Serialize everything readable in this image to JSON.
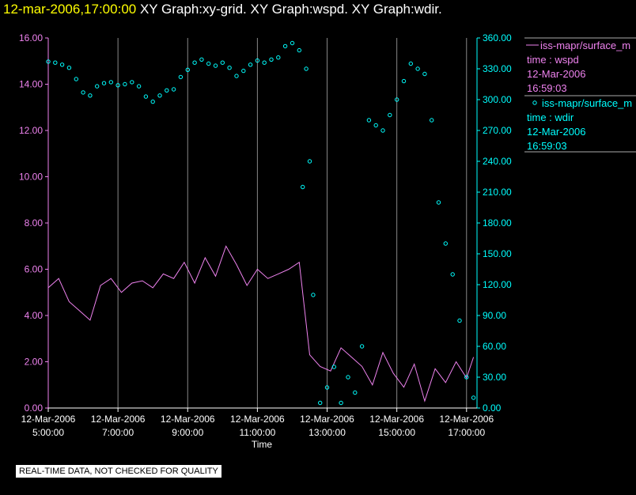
{
  "header": {
    "timestamp": "12-mar-2006,17:00:00",
    "rest": "  XY Graph:xy-grid.  XY Graph:wspd.  XY Graph:wdir."
  },
  "notice": "REAL-TIME DATA, NOT CHECKED FOR QUALITY",
  "colors": {
    "wspd": "#ee82ee",
    "wdir": "#00ffff",
    "grid": "#ffffff",
    "bg": "#000000",
    "title_ts": "#ffff00"
  },
  "chart_data": {
    "type": "line",
    "title": "12-mar-2006,17:00:00  XY Graph:xy-grid.  XY Graph:wspd.  XY Graph:wdir.",
    "xlabel": "Time",
    "x_range_hours": [
      5.0,
      17.3
    ],
    "x_ticks": [
      {
        "hour": 5,
        "date": "12-Mar-2006",
        "time": "5:00:00"
      },
      {
        "hour": 7,
        "date": "12-Mar-2006",
        "time": "7:00:00"
      },
      {
        "hour": 9,
        "date": "12-Mar-2006",
        "time": "9:00:00"
      },
      {
        "hour": 11,
        "date": "12-Mar-2006",
        "time": "11:00:00"
      },
      {
        "hour": 13,
        "date": "12-Mar-2006",
        "time": "13:00:00"
      },
      {
        "hour": 15,
        "date": "12-Mar-2006",
        "time": "15:00:00"
      },
      {
        "hour": 17,
        "date": "12-Mar-2006",
        "time": "17:00:00"
      }
    ],
    "left_axis": {
      "ylim": [
        0,
        16
      ],
      "ticks": [
        "0.00",
        "2.00",
        "4.00",
        "6.00",
        "8.00",
        "10.00",
        "12.00",
        "14.00",
        "16.00"
      ]
    },
    "right_axis": {
      "ylim": [
        0,
        360
      ],
      "ticks": [
        "0.00",
        "30.00",
        "60.00",
        "90.00",
        "120.00",
        "150.00",
        "180.00",
        "210.00",
        "240.00",
        "270.00",
        "300.00",
        "330.00",
        "360.00"
      ]
    },
    "series": [
      {
        "name": "iss-mapr/surface_m",
        "variable": "time : wspd",
        "date": "12-Mar-2006",
        "time": "16:59:03",
        "axis": "left",
        "style": "line",
        "hours": [
          5.0,
          5.3,
          5.6,
          5.9,
          6.2,
          6.5,
          6.8,
          7.1,
          7.4,
          7.7,
          8.0,
          8.3,
          8.6,
          8.9,
          9.2,
          9.5,
          9.8,
          10.1,
          10.4,
          10.7,
          11.0,
          11.3,
          11.6,
          11.9,
          12.2,
          12.5,
          12.8,
          13.1,
          13.4,
          13.7,
          14.0,
          14.3,
          14.6,
          14.9,
          15.2,
          15.5,
          15.8,
          16.1,
          16.4,
          16.7,
          17.0,
          17.2
        ],
        "values": [
          5.2,
          5.6,
          4.6,
          4.2,
          3.8,
          5.3,
          5.6,
          5.0,
          5.4,
          5.5,
          5.2,
          5.8,
          5.6,
          6.3,
          5.4,
          6.5,
          5.7,
          7.0,
          6.2,
          5.3,
          6.0,
          5.6,
          5.8,
          6.0,
          6.3,
          2.3,
          1.8,
          1.6,
          2.6,
          2.2,
          1.8,
          1.0,
          2.4,
          1.5,
          0.9,
          1.9,
          0.3,
          1.7,
          1.1,
          2.0,
          1.3,
          2.2
        ]
      },
      {
        "name": "iss-mapr/surface_m",
        "variable": "time : wdir",
        "date": "12-Mar-2006",
        "time": "16:59:03",
        "axis": "right",
        "style": "markers",
        "hours": [
          5.0,
          5.2,
          5.4,
          5.6,
          5.8,
          6.0,
          6.2,
          6.4,
          6.6,
          6.8,
          7.0,
          7.2,
          7.4,
          7.6,
          7.8,
          8.0,
          8.2,
          8.4,
          8.6,
          8.8,
          9.0,
          9.2,
          9.4,
          9.6,
          9.8,
          10.0,
          10.2,
          10.4,
          10.6,
          10.8,
          11.0,
          11.2,
          11.4,
          11.6,
          11.8,
          12.0,
          12.2,
          12.3,
          12.4,
          12.5,
          12.6,
          12.8,
          13.0,
          13.2,
          13.4,
          13.6,
          13.8,
          14.0,
          14.2,
          14.4,
          14.6,
          14.8,
          15.0,
          15.2,
          15.4,
          15.6,
          15.8,
          16.0,
          16.2,
          16.4,
          16.6,
          16.8,
          17.0,
          17.2
        ],
        "values": [
          337,
          336,
          334,
          331,
          320,
          307,
          304,
          313,
          316,
          317,
          314,
          315,
          317,
          313,
          303,
          298,
          304,
          309,
          310,
          322,
          329,
          336,
          339,
          335,
          333,
          336,
          331,
          323,
          328,
          334,
          338,
          336,
          339,
          341,
          352,
          355,
          348,
          215,
          330,
          240,
          110,
          5,
          20,
          40,
          5,
          30,
          15,
          60,
          280,
          275,
          270,
          285,
          300,
          318,
          335,
          330,
          325,
          280,
          200,
          160,
          130,
          85,
          30,
          10
        ]
      }
    ]
  }
}
